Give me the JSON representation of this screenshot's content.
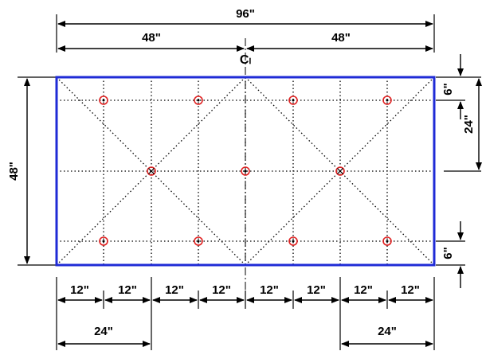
{
  "diagram": {
    "centerline_label": "Cₗ",
    "top_dimension": {
      "overall": "96\"",
      "left_half": "48\"",
      "right_half": "48\""
    },
    "left_dimension": {
      "height": "48\""
    },
    "right_dimensions": {
      "top_offset": "6\"",
      "half_height": "24\"",
      "bottom_offset": "6\""
    },
    "bottom_segments": [
      "12\"",
      "12\"",
      "12\"",
      "12\"",
      "12\"",
      "12\"",
      "12\"",
      "12\""
    ],
    "bottom_spans": {
      "left": "24\"",
      "right": "24\""
    },
    "colors": {
      "border": "#1f2bd6",
      "markers": "#e02020",
      "lines": "#000000"
    },
    "markers": {
      "plain": 8,
      "crossed": 2,
      "center": 1
    }
  }
}
